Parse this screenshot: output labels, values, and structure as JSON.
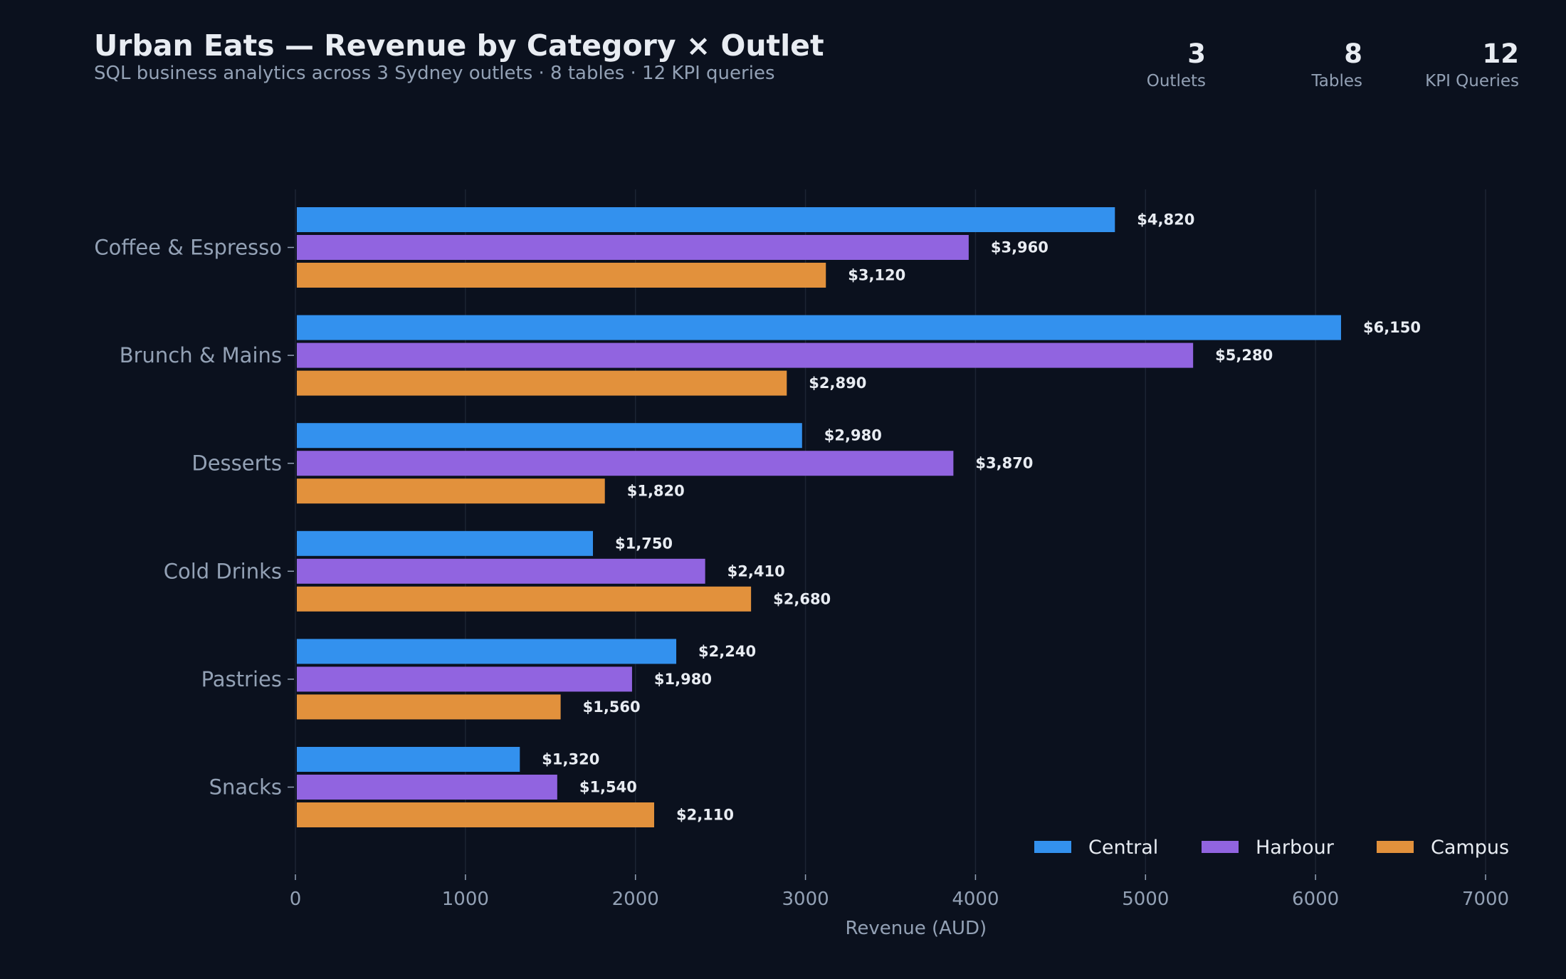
{
  "header": {
    "title": "Urban Eats — Revenue by Category × Outlet",
    "subtitle": "SQL business analytics across 3 Sydney outlets · 8 tables · 12 KPI queries"
  },
  "kpis": [
    {
      "value": "3",
      "label": "Outlets"
    },
    {
      "value": "8",
      "label": "Tables"
    },
    {
      "value": "12",
      "label": "KPI Queries"
    }
  ],
  "colors": {
    "background": "#0b111e",
    "Central": "#3391ee",
    "Harbour": "#9164e0",
    "Campus": "#e2913c",
    "grid": "#1c2433",
    "muted_text": "#93a1b5",
    "bright_text": "#e8ecf2"
  },
  "chart_data": {
    "type": "bar",
    "orientation": "horizontal",
    "categories": [
      "Coffee & Espresso",
      "Brunch & Mains",
      "Desserts",
      "Cold Drinks",
      "Pastries",
      "Snacks"
    ],
    "series": [
      {
        "name": "Central",
        "values": [
          4820,
          6150,
          2980,
          1750,
          2240,
          1320
        ],
        "labels": [
          "$4,820",
          "$6,150",
          "$2,980",
          "$1,750",
          "$2,240",
          "$1,320"
        ]
      },
      {
        "name": "Harbour",
        "values": [
          3960,
          5280,
          3870,
          2410,
          1980,
          1540
        ],
        "labels": [
          "$3,960",
          "$5,280",
          "$3,870",
          "$2,410",
          "$1,980",
          "$1,540"
        ]
      },
      {
        "name": "Campus",
        "values": [
          3120,
          2890,
          1820,
          2680,
          1560,
          2110
        ],
        "labels": [
          "$3,120",
          "$2,890",
          "$1,820",
          "$2,680",
          "$1,560",
          "$2,110"
        ]
      }
    ],
    "xlabel": "Revenue (AUD)",
    "ylabel": "",
    "xlim": [
      0,
      7000
    ],
    "xticks": [
      "0",
      "1000",
      "2000",
      "3000",
      "4000",
      "5000",
      "6000",
      "7000"
    ],
    "grid": "vertical",
    "legend": "bottom-right"
  }
}
